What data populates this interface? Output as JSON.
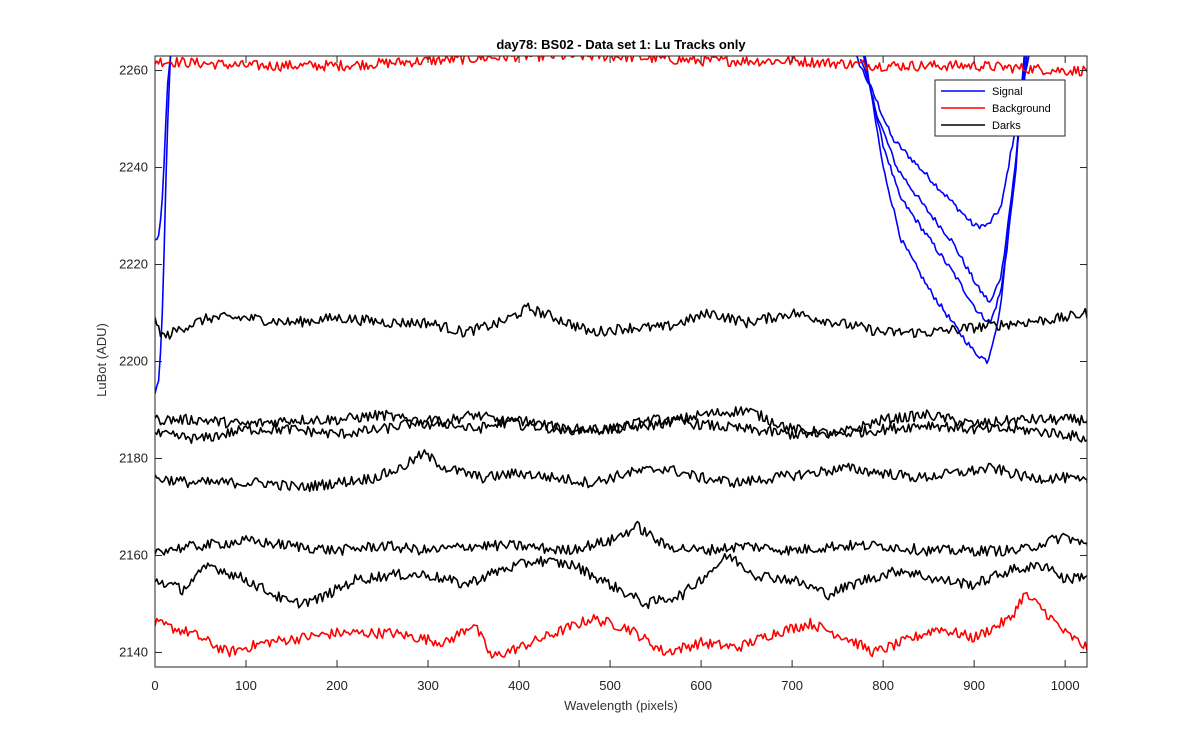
{
  "chart_data": {
    "type": "line",
    "title": "day78: BS02 - Data set 1: Lu Tracks only",
    "xlabel": "Wavelength (pixels)",
    "ylabel": "LuBot (ADU)",
    "xlim": [
      0,
      1024
    ],
    "ylim": [
      2137,
      2263
    ],
    "xticks": [
      0,
      100,
      200,
      300,
      400,
      500,
      600,
      700,
      800,
      900,
      1000
    ],
    "yticks": [
      2140,
      2160,
      2180,
      2200,
      2220,
      2240,
      2260
    ],
    "grid": false,
    "legend": {
      "placement": "top-right",
      "entries": [
        {
          "name": "Signal",
          "color": "#0000ff"
        },
        {
          "name": "Background",
          "color": "#ff0000"
        },
        {
          "name": "Darks",
          "color": "#000000"
        }
      ]
    },
    "series": [
      {
        "name": "Signal",
        "color": "#0000ff",
        "x": [
          0,
          5,
          9,
          13,
          17
        ],
        "y": [
          2225,
          2226,
          2236,
          2255,
          2263
        ]
      },
      {
        "name": "Signal",
        "color": "#0000ff",
        "x": [
          0,
          5,
          9,
          13,
          17
        ],
        "y": [
          2193,
          2197,
          2215,
          2245,
          2263
        ]
      },
      {
        "name": "Signal",
        "color": "#0000ff",
        "x": [
          770,
          790,
          810,
          840,
          870,
          900,
          915,
          930,
          945,
          960
        ],
        "y": [
          2263,
          2255,
          2246,
          2240,
          2234,
          2228,
          2228,
          2232,
          2248,
          2263
        ]
      },
      {
        "name": "Signal",
        "color": "#0000ff",
        "x": [
          775,
          795,
          815,
          845,
          875,
          905,
          918,
          930,
          945,
          958
        ],
        "y": [
          2263,
          2250,
          2240,
          2232,
          2225,
          2215,
          2212,
          2218,
          2240,
          2263
        ]
      },
      {
        "name": "Signal",
        "color": "#0000ff",
        "x": [
          778,
          798,
          818,
          848,
          878,
          905,
          918,
          930,
          945,
          956
        ],
        "y": [
          2263,
          2246,
          2234,
          2226,
          2218,
          2210,
          2208,
          2215,
          2238,
          2263
        ]
      },
      {
        "name": "Signal",
        "color": "#0000ff",
        "x": [
          780,
          800,
          820,
          850,
          880,
          900,
          915,
          928,
          943,
          955
        ],
        "y": [
          2263,
          2240,
          2225,
          2215,
          2207,
          2202,
          2200,
          2210,
          2235,
          2263
        ]
      },
      {
        "name": "Background",
        "color": "#ff0000",
        "x": [
          0,
          100,
          200,
          300,
          400,
          500,
          600,
          700,
          800,
          900,
          1000,
          1024
        ],
        "y": [
          2262,
          2261,
          2261,
          2262,
          2263,
          2263,
          2262,
          2262,
          2261,
          2261,
          2260,
          2260
        ]
      },
      {
        "name": "Background",
        "color": "#ff0000",
        "x": [
          0,
          40,
          80,
          120,
          160,
          200,
          260,
          320,
          350,
          370,
          400,
          440,
          480,
          520,
          560,
          600,
          640,
          680,
          720,
          760,
          790,
          820,
          860,
          900,
          940,
          955,
          975,
          1000,
          1024
        ],
        "y": [
          2146,
          2144,
          2140,
          2142,
          2143,
          2144,
          2144,
          2142,
          2146,
          2139,
          2141,
          2144,
          2147,
          2145,
          2140,
          2142,
          2141,
          2144,
          2146,
          2143,
          2140,
          2142,
          2145,
          2143,
          2147,
          2152,
          2149,
          2144,
          2141
        ]
      },
      {
        "name": "Darks",
        "color": "#000000",
        "x": [
          0,
          10,
          30,
          60,
          100,
          150,
          200,
          260,
          300,
          340,
          380,
          410,
          440,
          480,
          520,
          560,
          610,
          650,
          700,
          750,
          800,
          850,
          900,
          950,
          1000,
          1024
        ],
        "y": [
          2208,
          2205,
          2207,
          2209,
          2209,
          2208,
          2209,
          2208,
          2208,
          2206,
          2208,
          2211,
          2209,
          2206,
          2207,
          2207,
          2210,
          2208,
          2210,
          2208,
          2206,
          2206,
          2207,
          2208,
          2209,
          2210
        ]
      },
      {
        "name": "Darks",
        "color": "#000000",
        "x": [
          0,
          50,
          100,
          150,
          200,
          250,
          300,
          350,
          400,
          450,
          500,
          550,
          600,
          650,
          700,
          750,
          800,
          850,
          900,
          950,
          1000,
          1024
        ],
        "y": [
          2188,
          2188,
          2187,
          2188,
          2188,
          2189,
          2187,
          2189,
          2187,
          2186,
          2186,
          2187,
          2189,
          2190,
          2186,
          2185,
          2188,
          2189,
          2187,
          2188,
          2188,
          2188
        ]
      },
      {
        "name": "Darks",
        "color": "#000000",
        "x": [
          0,
          50,
          100,
          150,
          200,
          250,
          300,
          350,
          400,
          450,
          500,
          550,
          600,
          650,
          700,
          750,
          800,
          850,
          900,
          950,
          1000,
          1024
        ],
        "y": [
          2185,
          2184,
          2186,
          2186,
          2185,
          2186,
          2188,
          2186,
          2188,
          2186,
          2186,
          2188,
          2187,
          2186,
          2185,
          2185,
          2186,
          2187,
          2186,
          2186,
          2185,
          2184
        ]
      },
      {
        "name": "Darks",
        "color": "#000000",
        "x": [
          0,
          40,
          80,
          120,
          160,
          200,
          240,
          270,
          295,
          320,
          360,
          400,
          440,
          480,
          520,
          560,
          600,
          640,
          680,
          720,
          760,
          800,
          840,
          880,
          920,
          960,
          1000,
          1024
        ],
        "y": [
          2176,
          2175,
          2175,
          2175,
          2174,
          2175,
          2176,
          2178,
          2181,
          2178,
          2176,
          2177,
          2176,
          2175,
          2177,
          2178,
          2176,
          2175,
          2176,
          2177,
          2178,
          2177,
          2176,
          2177,
          2178,
          2176,
          2176,
          2175
        ]
      },
      {
        "name": "Darks",
        "color": "#000000",
        "x": [
          0,
          50,
          100,
          150,
          200,
          250,
          300,
          350,
          400,
          450,
          500,
          530,
          560,
          600,
          650,
          700,
          750,
          800,
          850,
          900,
          950,
          1000,
          1024
        ],
        "y": [
          2161,
          2162,
          2163,
          2162,
          2161,
          2162,
          2161,
          2162,
          2162,
          2161,
          2163,
          2166,
          2162,
          2161,
          2162,
          2161,
          2162,
          2162,
          2161,
          2161,
          2161,
          2164,
          2162
        ]
      },
      {
        "name": "Darks",
        "color": "#000000",
        "x": [
          0,
          30,
          60,
          100,
          150,
          180,
          220,
          260,
          300,
          340,
          380,
          420,
          460,
          500,
          540,
          580,
          630,
          660,
          700,
          740,
          780,
          820,
          860,
          900,
          940,
          980,
          1000,
          1024
        ],
        "y": [
          2155,
          2153,
          2158,
          2155,
          2150,
          2151,
          2155,
          2156,
          2156,
          2154,
          2157,
          2159,
          2158,
          2154,
          2150,
          2152,
          2160,
          2156,
          2155,
          2152,
          2155,
          2157,
          2155,
          2154,
          2157,
          2158,
          2155,
          2156
        ]
      }
    ]
  }
}
